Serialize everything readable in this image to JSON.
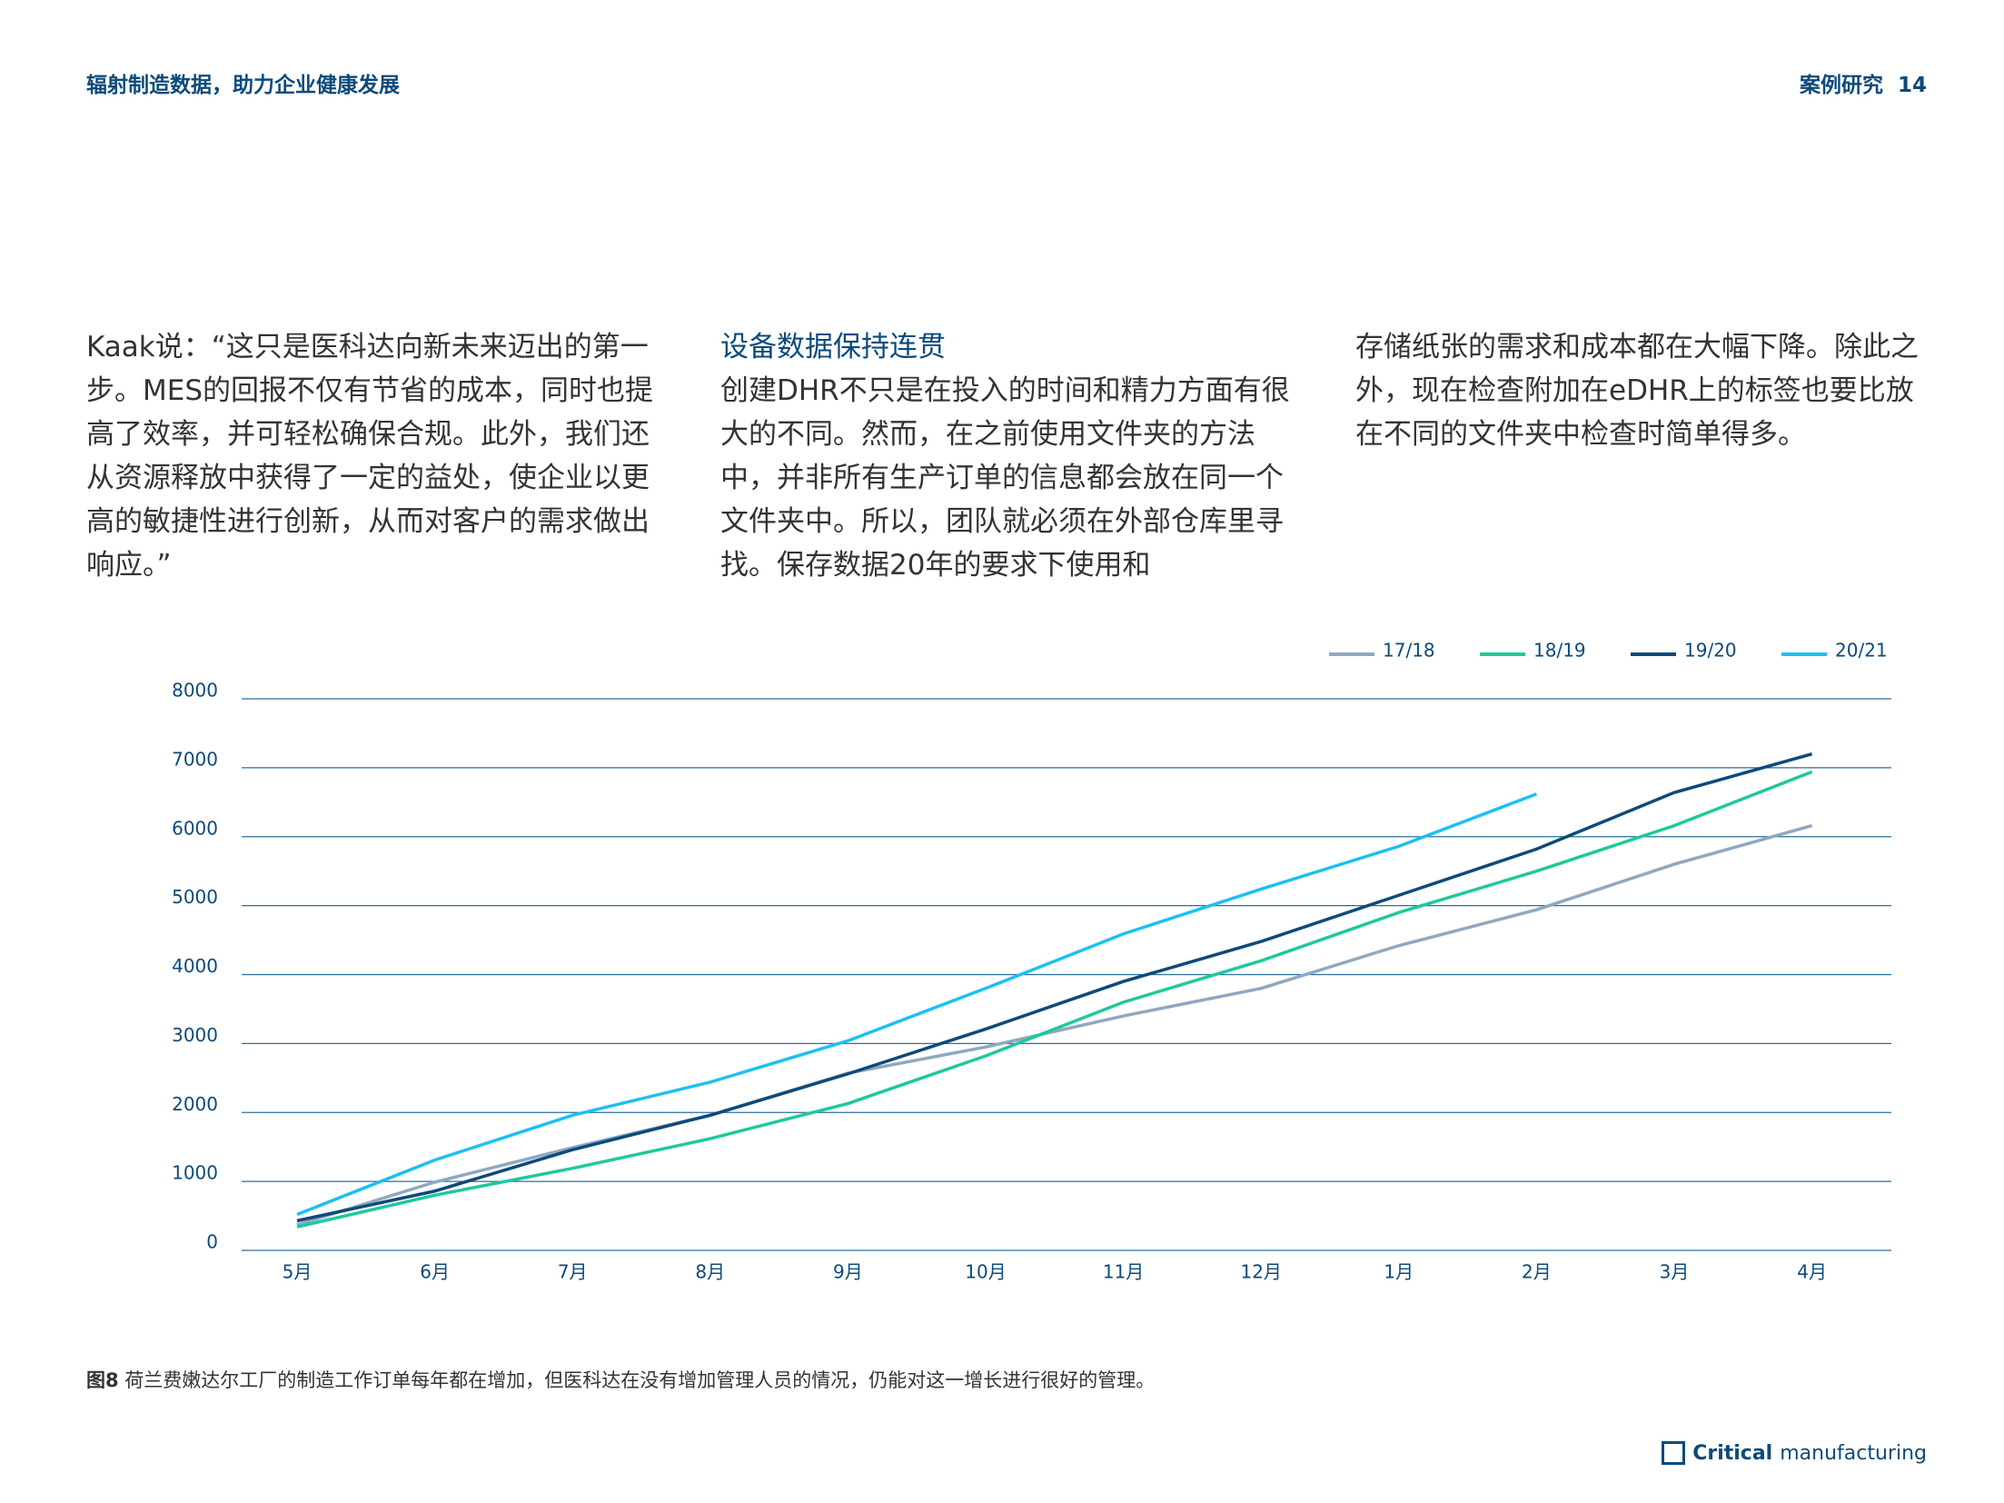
{
  "header": {
    "title": "辐射制造数据，助力企业健康发展",
    "section": "案例研究",
    "page": "14"
  },
  "columns": [
    {
      "paragraphs": [
        "Kaak说：“这只是医科达向新未来迈出的第一步。MES的回报不仅有节省的成本，同时也提高了效率，并可轻松确保合规。此外，我们还从资源释放中获得了一定的益处，使企业以更高的敏捷性进行创新，从而对客户的需求做出响应。”"
      ]
    },
    {
      "heading": "设备数据保持连贯",
      "paragraphs": [
        "创建DHR不只是在投入的时间和精力方面有很大的不同。然而，在之前使用文件夹的方法中，并非所有生产订单的信息都会放在同一个文件夹中。所以，团队就必须在外部仓库里寻找。保存数据20年的要求下使用和"
      ]
    },
    {
      "paragraphs": [
        "存储纸张的需求和成本都在大幅下降。除此之外，现在检查附加在eDHR上的标签也要比放在不同的文件夹中检查时简单得多。"
      ]
    }
  ],
  "chart_data": {
    "type": "line",
    "categories": [
      "5月",
      "6月",
      "7月",
      "8月",
      "9月",
      "10月",
      "11月",
      "12月",
      "1月",
      "2月",
      "3月",
      "4月"
    ],
    "series": [
      {
        "name": "17/18",
        "color": "#8fa8c2",
        "values": [
          370,
          990,
          1490,
          1960,
          2570,
          2950,
          3400,
          3800,
          4420,
          4940,
          5600,
          6160
        ]
      },
      {
        "name": "18/19",
        "color": "#1ec99b",
        "values": [
          340,
          800,
          1190,
          1620,
          2130,
          2820,
          3600,
          4200,
          4900,
          5500,
          6160,
          6940
        ]
      },
      {
        "name": "19/20",
        "color": "#0d4a7a",
        "values": [
          430,
          860,
          1460,
          1960,
          2560,
          3210,
          3900,
          4480,
          5150,
          5820,
          6640,
          7200
        ]
      },
      {
        "name": "20/21",
        "color": "#1cc0f2",
        "values": [
          520,
          1310,
          1960,
          2440,
          3040,
          3800,
          4590,
          5240,
          5860,
          6620,
          null,
          null
        ]
      }
    ],
    "ylim": [
      0,
      8000
    ],
    "yticks": [
      0,
      1000,
      2000,
      3000,
      4000,
      5000,
      6000,
      7000,
      8000
    ],
    "grid": true,
    "legend": "top-right"
  },
  "caption": {
    "label": "图8",
    "text": "荷兰费嫩达尔工厂的制造工作订单每年都在增加，但医科达在没有增加管理人员的情况，仍能对这一增长进行很好的管理。"
  },
  "logo": {
    "bold": "Critical",
    "rest": "manufacturing"
  }
}
